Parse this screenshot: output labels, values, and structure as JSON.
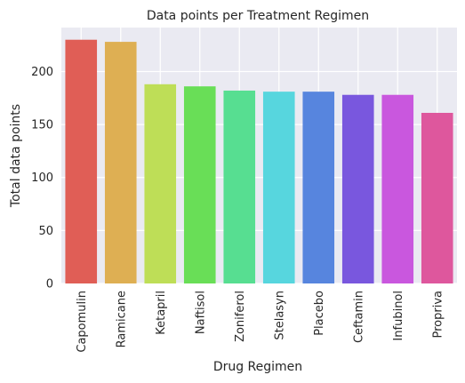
{
  "chart_data": {
    "type": "bar",
    "title": "Data points per Treatment Regimen",
    "xlabel": "Drug Regimen",
    "ylabel": "Total data points",
    "categories": [
      "Capomulin",
      "Ramicane",
      "Ketapril",
      "Naftisol",
      "Zoniferol",
      "Stelasyn",
      "Placebo",
      "Ceftamin",
      "Infubinol",
      "Propriva"
    ],
    "values": [
      230,
      228,
      188,
      186,
      182,
      181,
      181,
      178,
      178,
      161
    ],
    "colors": [
      "#e05e56",
      "#deaf53",
      "#bede57",
      "#69de57",
      "#57de91",
      "#57d6de",
      "#5785de",
      "#7957de",
      "#c957de",
      "#de579d"
    ],
    "yticks": [
      0,
      50,
      100,
      150,
      200
    ],
    "ylim": [
      0,
      241.5
    ],
    "grid": true,
    "plot_background": "#eaeaf2",
    "grid_color": "#ffffff"
  }
}
